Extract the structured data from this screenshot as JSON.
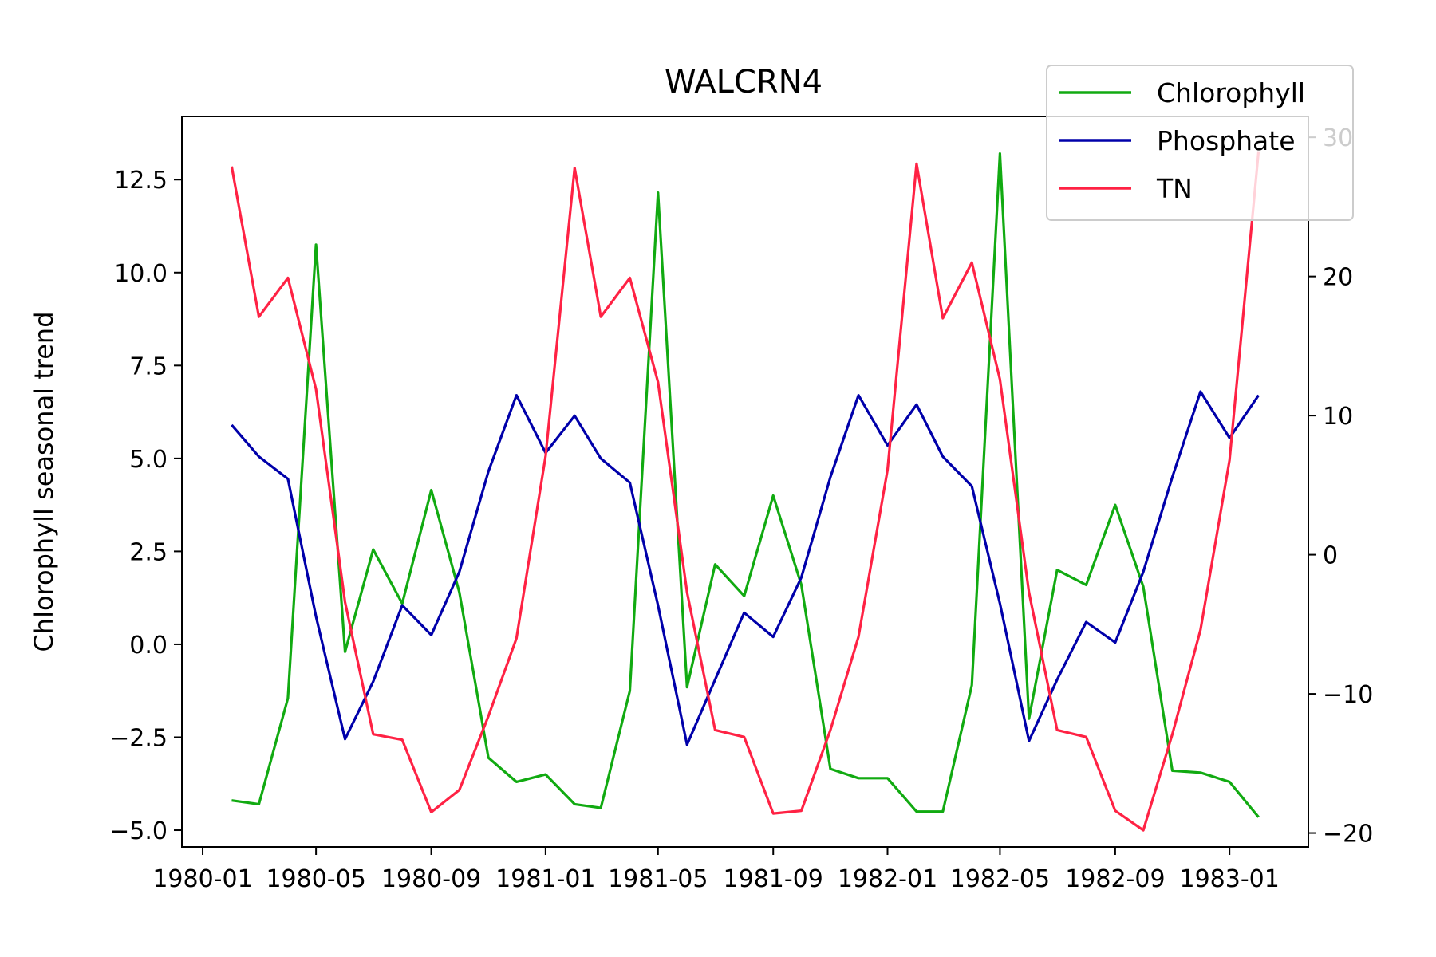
{
  "chart_data": {
    "type": "line",
    "title": "WALCRN4",
    "xlabel": "",
    "ylabel": "Chlorophyll seasonal trend",
    "y2label": "",
    "x_ticks": [
      "1980-01",
      "1980-05",
      "1980-09",
      "1981-01",
      "1981-05",
      "1981-09",
      "1982-01",
      "1982-05",
      "1982-09",
      "1983-01"
    ],
    "y_ticks": [
      "−5.0",
      "−2.5",
      "0.0",
      "2.5",
      "5.0",
      "7.5",
      "10.0",
      "12.5"
    ],
    "y2_ticks": [
      "−20",
      "−10",
      "0",
      "10",
      "20",
      "30"
    ],
    "ylim": [
      -5.45,
      14.2
    ],
    "y2lim": [
      -21.0,
      31.5
    ],
    "x": [
      "1980-02-01",
      "1980-03-01",
      "1980-04-01",
      "1980-05-01",
      "1980-06-01",
      "1980-07-01",
      "1980-08-01",
      "1980-09-01",
      "1980-10-01",
      "1980-11-01",
      "1980-12-01",
      "1981-01-01",
      "1981-02-01",
      "1981-03-01",
      "1981-04-01",
      "1981-05-01",
      "1981-06-01",
      "1981-07-01",
      "1981-08-01",
      "1981-09-01",
      "1981-10-01",
      "1981-11-01",
      "1981-12-01",
      "1982-01-01",
      "1982-02-01",
      "1982-03-01",
      "1982-04-01",
      "1982-05-01",
      "1982-06-01",
      "1982-07-01",
      "1982-08-01",
      "1982-09-01",
      "1982-10-01",
      "1982-11-01",
      "1982-12-01",
      "1983-01-01",
      "1983-02-01"
    ],
    "grid": false,
    "legend_position": "top-right",
    "series": [
      {
        "name": "Chlorophyll",
        "axis": "left",
        "color": "#11aa11",
        "values": [
          -4.2,
          -4.3,
          -1.45,
          10.75,
          -0.2,
          2.55,
          1.1,
          4.15,
          1.4,
          -3.05,
          -3.7,
          -3.5,
          -4.3,
          -4.4,
          -1.25,
          12.15,
          -1.15,
          2.15,
          1.3,
          4.0,
          1.6,
          -3.35,
          -3.6,
          -3.6,
          -4.5,
          -4.5,
          -1.1,
          13.2,
          -2.0,
          2.0,
          1.6,
          3.75,
          1.55,
          -3.4,
          -3.45,
          -3.7,
          -4.65
        ]
      },
      {
        "name": "Phosphate",
        "axis": "left",
        "color": "#0000aa",
        "values": [
          5.9,
          5.05,
          4.45,
          0.75,
          -2.55,
          -1.0,
          1.05,
          0.25,
          1.95,
          4.65,
          6.7,
          5.15,
          6.15,
          5.0,
          4.35,
          1.05,
          -2.7,
          -0.95,
          0.85,
          0.2,
          1.8,
          4.5,
          6.7,
          5.35,
          6.45,
          5.05,
          4.25,
          1.1,
          -2.6,
          -0.95,
          0.6,
          0.05,
          1.95,
          4.5,
          6.8,
          5.55,
          6.7
        ]
      },
      {
        "name": "TN",
        "axis": "right",
        "color": "#ff2244",
        "values": [
          27.9,
          17.1,
          19.9,
          11.9,
          -3.4,
          -12.9,
          -13.3,
          -18.5,
          -16.9,
          -11.6,
          -6.0,
          7.1,
          27.8,
          17.1,
          19.9,
          12.4,
          -2.7,
          -12.6,
          -13.1,
          -18.6,
          -18.4,
          -12.6,
          -5.9,
          6.1,
          28.1,
          17.0,
          21.0,
          12.6,
          -2.7,
          -12.6,
          -13.1,
          -18.4,
          -19.8,
          -12.9,
          -5.4,
          6.8,
          29.0
        ]
      }
    ]
  }
}
